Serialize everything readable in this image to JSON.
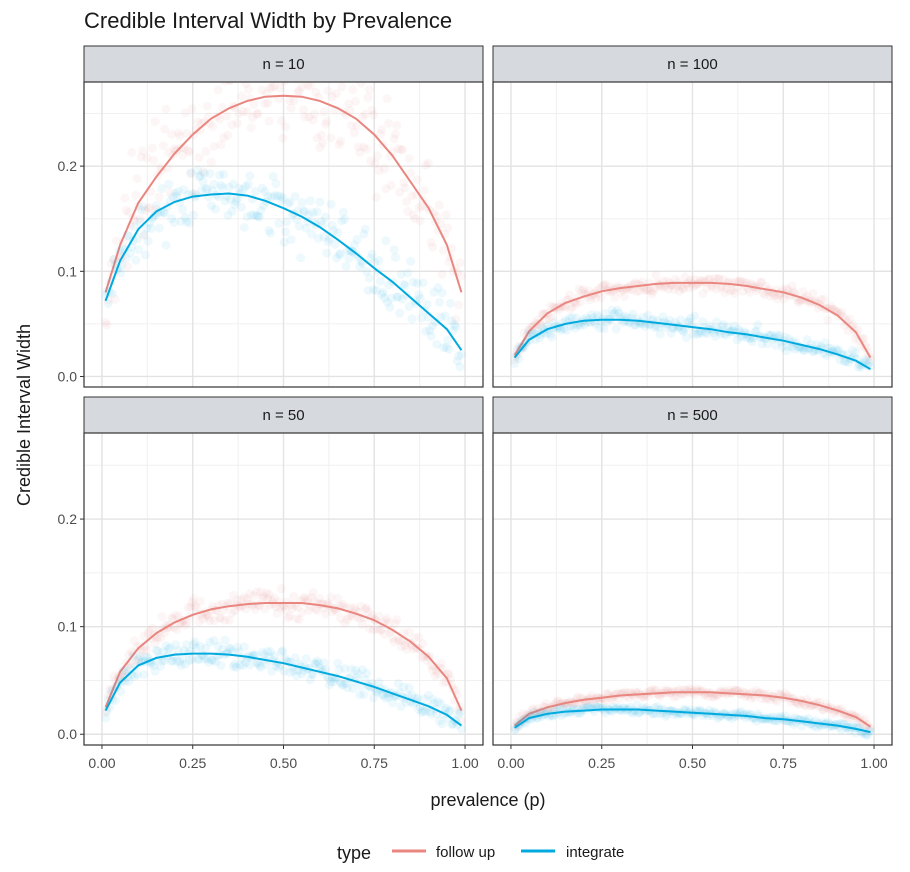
{
  "chart_data": {
    "type": "scatter",
    "title": "Credible Interval Width by Prevalence",
    "xlabel": "prevalence (p)",
    "ylabel": "Credible Interval Width",
    "xlim": [
      0,
      1
    ],
    "ylim": [
      -0.01,
      0.28
    ],
    "x_ticks": [
      "0.00",
      "0.25",
      "0.50",
      "0.75",
      "1.00"
    ],
    "y_ticks": [
      "0.0",
      "0.1",
      "0.2"
    ],
    "grid": true,
    "facets": [
      "n =  10",
      "n =  100",
      "n =  50",
      "n =  500"
    ],
    "legend": {
      "title": "type",
      "position": "bottom",
      "entries": [
        {
          "label": "follow up",
          "color": "#E8867F"
        },
        {
          "label": "integrate",
          "color": "#00A9DE"
        }
      ]
    },
    "panels": [
      {
        "label": "n =  10",
        "series": [
          {
            "name": "follow up",
            "x": [
              0.01,
              0.05,
              0.1,
              0.15,
              0.2,
              0.25,
              0.3,
              0.35,
              0.4,
              0.45,
              0.5,
              0.55,
              0.6,
              0.65,
              0.7,
              0.75,
              0.8,
              0.85,
              0.9,
              0.95,
              0.99
            ],
            "y": [
              0.08,
              0.125,
              0.165,
              0.19,
              0.212,
              0.23,
              0.245,
              0.255,
              0.262,
              0.266,
              0.267,
              0.266,
              0.262,
              0.255,
              0.245,
              0.23,
              0.21,
              0.185,
              0.16,
              0.125,
              0.08
            ],
            "spread": 0.045
          },
          {
            "name": "integrate",
            "x": [
              0.01,
              0.05,
              0.1,
              0.15,
              0.2,
              0.25,
              0.3,
              0.35,
              0.4,
              0.45,
              0.5,
              0.55,
              0.6,
              0.65,
              0.7,
              0.75,
              0.8,
              0.85,
              0.9,
              0.95,
              0.99
            ],
            "y": [
              0.072,
              0.11,
              0.14,
              0.157,
              0.166,
              0.171,
              0.173,
              0.174,
              0.172,
              0.167,
              0.16,
              0.152,
              0.142,
              0.13,
              0.117,
              0.103,
              0.09,
              0.075,
              0.06,
              0.045,
              0.025
            ],
            "spread": 0.03
          }
        ]
      },
      {
        "label": "n =  100",
        "series": [
          {
            "name": "follow up",
            "x": [
              0.01,
              0.05,
              0.1,
              0.15,
              0.2,
              0.25,
              0.3,
              0.35,
              0.4,
              0.45,
              0.5,
              0.55,
              0.6,
              0.65,
              0.7,
              0.75,
              0.8,
              0.85,
              0.9,
              0.95,
              0.99
            ],
            "y": [
              0.02,
              0.043,
              0.06,
              0.07,
              0.076,
              0.081,
              0.084,
              0.086,
              0.088,
              0.089,
              0.089,
              0.089,
              0.088,
              0.086,
              0.083,
              0.08,
              0.075,
              0.068,
              0.058,
              0.042,
              0.018
            ],
            "spread": 0.008
          },
          {
            "name": "integrate",
            "x": [
              0.01,
              0.05,
              0.1,
              0.15,
              0.2,
              0.25,
              0.3,
              0.35,
              0.4,
              0.45,
              0.5,
              0.55,
              0.6,
              0.65,
              0.7,
              0.75,
              0.8,
              0.85,
              0.9,
              0.95,
              0.99
            ],
            "y": [
              0.018,
              0.035,
              0.045,
              0.05,
              0.053,
              0.054,
              0.054,
              0.053,
              0.051,
              0.049,
              0.047,
              0.045,
              0.042,
              0.04,
              0.037,
              0.034,
              0.03,
              0.026,
              0.021,
              0.015,
              0.007
            ],
            "spread": 0.008
          }
        ]
      },
      {
        "label": "n =  50",
        "series": [
          {
            "name": "follow up",
            "x": [
              0.01,
              0.05,
              0.1,
              0.15,
              0.2,
              0.25,
              0.3,
              0.35,
              0.4,
              0.45,
              0.5,
              0.55,
              0.6,
              0.65,
              0.7,
              0.75,
              0.8,
              0.85,
              0.9,
              0.95,
              0.99
            ],
            "y": [
              0.025,
              0.058,
              0.08,
              0.094,
              0.104,
              0.111,
              0.116,
              0.119,
              0.121,
              0.122,
              0.122,
              0.122,
              0.12,
              0.117,
              0.112,
              0.106,
              0.097,
              0.086,
              0.072,
              0.052,
              0.022
            ],
            "spread": 0.012
          },
          {
            "name": "integrate",
            "x": [
              0.01,
              0.05,
              0.1,
              0.15,
              0.2,
              0.25,
              0.3,
              0.35,
              0.4,
              0.45,
              0.5,
              0.55,
              0.6,
              0.65,
              0.7,
              0.75,
              0.8,
              0.85,
              0.9,
              0.95,
              0.99
            ],
            "y": [
              0.022,
              0.048,
              0.064,
              0.071,
              0.074,
              0.075,
              0.075,
              0.074,
              0.072,
              0.069,
              0.066,
              0.062,
              0.058,
              0.054,
              0.049,
              0.044,
              0.038,
              0.032,
              0.026,
              0.018,
              0.008
            ],
            "spread": 0.012
          }
        ]
      },
      {
        "label": "n =  500",
        "series": [
          {
            "name": "follow up",
            "x": [
              0.01,
              0.05,
              0.1,
              0.15,
              0.2,
              0.25,
              0.3,
              0.35,
              0.4,
              0.45,
              0.5,
              0.55,
              0.6,
              0.65,
              0.7,
              0.75,
              0.8,
              0.85,
              0.9,
              0.95,
              0.99
            ],
            "y": [
              0.008,
              0.019,
              0.025,
              0.029,
              0.032,
              0.034,
              0.036,
              0.037,
              0.038,
              0.039,
              0.039,
              0.039,
              0.038,
              0.037,
              0.036,
              0.034,
              0.031,
              0.027,
              0.022,
              0.016,
              0.007
            ],
            "spread": 0.004
          },
          {
            "name": "integrate",
            "x": [
              0.01,
              0.05,
              0.1,
              0.15,
              0.2,
              0.25,
              0.3,
              0.35,
              0.4,
              0.45,
              0.5,
              0.55,
              0.6,
              0.65,
              0.7,
              0.75,
              0.8,
              0.85,
              0.9,
              0.95,
              0.99
            ],
            "y": [
              0.006,
              0.015,
              0.019,
              0.021,
              0.022,
              0.023,
              0.023,
              0.023,
              0.022,
              0.021,
              0.02,
              0.019,
              0.018,
              0.017,
              0.015,
              0.014,
              0.012,
              0.01,
              0.008,
              0.005,
              0.002
            ],
            "spread": 0.004
          }
        ]
      }
    ]
  }
}
